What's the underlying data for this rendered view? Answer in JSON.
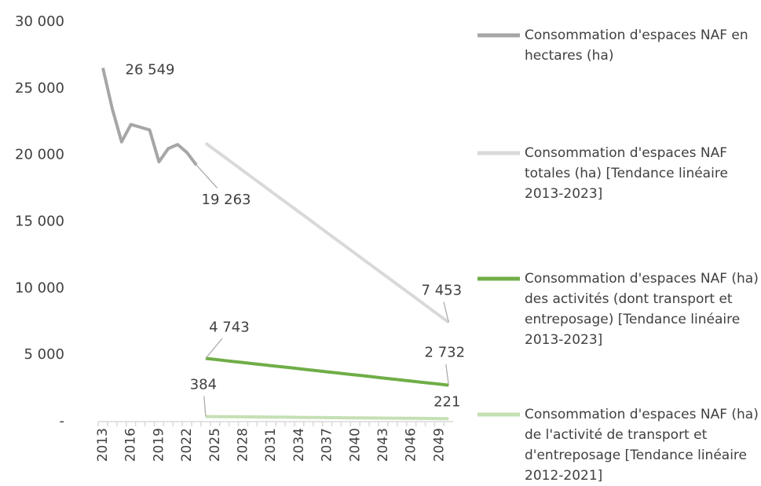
{
  "chart_data": {
    "type": "line",
    "categories": [
      "2013",
      null,
      null,
      "2016",
      null,
      null,
      "2019",
      null,
      null,
      "2022",
      null,
      null,
      "2025",
      null,
      null,
      "2028",
      null,
      null,
      "2031",
      null,
      null,
      "2034",
      null,
      null,
      "2037",
      null,
      null,
      "2040",
      null,
      null,
      "2043",
      null,
      null,
      "2046",
      null,
      null,
      "2049",
      null
    ],
    "ylim": [
      0,
      30000
    ],
    "yticks": [
      {
        "value": 0,
        "label": "-"
      },
      {
        "value": 5000,
        "label": "5 000"
      },
      {
        "value": 10000,
        "label": "10 000"
      },
      {
        "value": 15000,
        "label": "15 000"
      },
      {
        "value": 20000,
        "label": "20 000"
      },
      {
        "value": 25000,
        "label": "25 000"
      },
      {
        "value": 30000,
        "label": "30 000"
      }
    ],
    "grid": false,
    "legend": "right",
    "series": [
      {
        "name": "Consommation d'espaces NAF en hectares (ha)",
        "color": "#a6a6a6",
        "values": [
          26549,
          23500,
          21000,
          22300,
          22100,
          21900,
          19500,
          20500,
          20800,
          20200,
          19263,
          null,
          null,
          null,
          null,
          null,
          null,
          null,
          null,
          null,
          null,
          null,
          null,
          null,
          null,
          null,
          null,
          null,
          null,
          null,
          null,
          null,
          null,
          null,
          null,
          null,
          null,
          null
        ],
        "value_labels": [
          "26 549",
          null,
          null,
          null,
          null,
          null,
          null,
          null,
          null,
          null,
          "19 263",
          null,
          null,
          null,
          null,
          null,
          null,
          null,
          null,
          null,
          null,
          null,
          null,
          null,
          null,
          null,
          null,
          null,
          null,
          null,
          null,
          null,
          null,
          null,
          null,
          null,
          null,
          null
        ]
      },
      {
        "name": "Consommation d'espaces NAF totales (ha) [Tendance linéaire 2013-2023]",
        "color": "#d9d9d9",
        "values": [
          null,
          null,
          null,
          null,
          null,
          null,
          null,
          null,
          null,
          null,
          null,
          20900,
          20383,
          19866,
          19348,
          18831,
          18314,
          17797,
          17280,
          16762,
          16245,
          15728,
          15211,
          14694,
          14176,
          13659,
          13142,
          12625,
          12108,
          11590,
          11073,
          10556,
          10039,
          9522,
          9004,
          8487,
          7970,
          7453
        ],
        "value_labels": [
          null,
          null,
          null,
          null,
          null,
          null,
          null,
          null,
          null,
          null,
          null,
          null,
          null,
          null,
          null,
          null,
          null,
          null,
          null,
          null,
          null,
          null,
          null,
          null,
          null,
          null,
          null,
          null,
          null,
          null,
          null,
          null,
          null,
          null,
          null,
          null,
          null,
          "7 453"
        ]
      },
      {
        "name": "Consommation d'espaces NAF (ha) des activités (dont transport et entreposage) [Tendance linéaire 2013-2023]",
        "color": "#70ad47",
        "values": [
          null,
          null,
          null,
          null,
          null,
          null,
          null,
          null,
          null,
          null,
          null,
          4743,
          4666,
          4588,
          4511,
          4434,
          4356,
          4279,
          4202,
          4124,
          4047,
          3970,
          3892,
          3815,
          3737,
          3660,
          3583,
          3505,
          3428,
          3351,
          3273,
          3196,
          3119,
          3041,
          2964,
          2887,
          2809,
          2732
        ],
        "value_labels": [
          null,
          null,
          null,
          null,
          null,
          null,
          null,
          null,
          null,
          null,
          null,
          "4 743",
          null,
          null,
          null,
          null,
          null,
          null,
          null,
          null,
          null,
          null,
          null,
          null,
          null,
          null,
          null,
          null,
          null,
          null,
          null,
          null,
          null,
          null,
          null,
          null,
          null,
          "2 732"
        ]
      },
      {
        "name": "Consommation d'espaces NAF (ha) de l'activité de transport et d'entreposage [Tendance linéaire 2012-2021]",
        "color": "#c5e0b4",
        "values": [
          null,
          null,
          null,
          null,
          null,
          null,
          null,
          null,
          null,
          null,
          null,
          384,
          378,
          371,
          365,
          359,
          353,
          346,
          340,
          334,
          328,
          321,
          315,
          309,
          302,
          296,
          290,
          284,
          277,
          271,
          265,
          259,
          252,
          246,
          240,
          234,
          227,
          221
        ],
        "value_labels": [
          null,
          null,
          null,
          null,
          null,
          null,
          null,
          null,
          null,
          null,
          null,
          "384",
          null,
          null,
          null,
          null,
          null,
          null,
          null,
          null,
          null,
          null,
          null,
          null,
          null,
          null,
          null,
          null,
          null,
          null,
          null,
          null,
          null,
          null,
          null,
          null,
          null,
          "221"
        ]
      }
    ]
  }
}
